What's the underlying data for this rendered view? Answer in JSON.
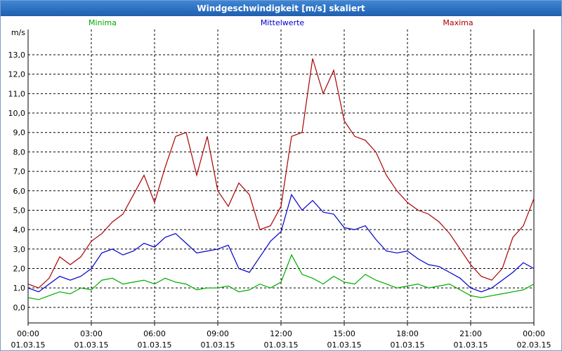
{
  "window": {
    "title": "Windgeschwindigkeit [m/s] skaliert"
  },
  "chart_data": {
    "type": "line",
    "title": "Windgeschwindigkeit [m/s] skaliert",
    "ylabel": "m/s",
    "ylim": [
      -0.8,
      14.3
    ],
    "xlim_hours": [
      0,
      24
    ],
    "y_ticks": [
      "0,0",
      "1,0",
      "2,0",
      "3,0",
      "4,0",
      "5,0",
      "6,0",
      "7,0",
      "8,0",
      "9,0",
      "10,0",
      "11,0",
      "12,0",
      "13,0"
    ],
    "x_ticks": [
      {
        "time": "00:00",
        "date": "01.03.15"
      },
      {
        "time": "03:00",
        "date": "01.03.15"
      },
      {
        "time": "06:00",
        "date": "01.03.15"
      },
      {
        "time": "09:00",
        "date": "01.03.15"
      },
      {
        "time": "12:00",
        "date": "01.03.15"
      },
      {
        "time": "15:00",
        "date": "01.03.15"
      },
      {
        "time": "18:00",
        "date": "01.03.15"
      },
      {
        "time": "21:00",
        "date": "01.03.15"
      },
      {
        "time": "00:00",
        "date": "02.03.15"
      }
    ],
    "grid": true,
    "x_hours": [
      0,
      0.5,
      1,
      1.5,
      2,
      2.5,
      3,
      3.5,
      4,
      4.5,
      5,
      5.5,
      6,
      6.5,
      7,
      7.5,
      8,
      8.5,
      9,
      9.5,
      10,
      10.5,
      11,
      11.5,
      12,
      12.5,
      13,
      13.5,
      14,
      14.5,
      15,
      15.5,
      16,
      16.5,
      17,
      17.5,
      18,
      18.5,
      19,
      19.5,
      20,
      20.5,
      21,
      21.5,
      22,
      22.5,
      23,
      23.5,
      24
    ],
    "series": [
      {
        "name": "Minima",
        "color": "#00aa00",
        "values": [
          0.5,
          0.4,
          0.6,
          0.8,
          0.7,
          1.0,
          0.9,
          1.4,
          1.5,
          1.2,
          1.3,
          1.4,
          1.2,
          1.5,
          1.3,
          1.2,
          0.9,
          1.0,
          1.0,
          1.1,
          0.8,
          0.9,
          1.2,
          1.0,
          1.3,
          2.7,
          1.7,
          1.5,
          1.2,
          1.6,
          1.3,
          1.2,
          1.7,
          1.4,
          1.2,
          1.0,
          1.1,
          1.2,
          1.0,
          1.1,
          1.2,
          0.9,
          0.6,
          0.5,
          0.6,
          0.7,
          0.8,
          0.9,
          1.2
        ]
      },
      {
        "name": "Mittelwerte",
        "color": "#0000cc",
        "values": [
          1.0,
          0.8,
          1.2,
          1.6,
          1.4,
          1.6,
          2.0,
          2.8,
          3.0,
          2.7,
          2.9,
          3.3,
          3.1,
          3.6,
          3.8,
          3.3,
          2.8,
          2.9,
          3.0,
          3.2,
          2.0,
          1.8,
          2.6,
          3.4,
          3.9,
          5.8,
          5.0,
          5.5,
          4.9,
          4.8,
          4.1,
          4.0,
          4.2,
          3.5,
          2.9,
          2.8,
          2.9,
          2.5,
          2.2,
          2.1,
          1.8,
          1.5,
          1.0,
          0.8,
          1.0,
          1.4,
          1.8,
          2.3,
          2.0
        ]
      },
      {
        "name": "Maxima",
        "color": "#aa0000",
        "values": [
          1.2,
          1.0,
          1.5,
          2.6,
          2.2,
          2.6,
          3.4,
          3.8,
          4.4,
          4.8,
          5.8,
          6.8,
          5.4,
          7.2,
          8.8,
          9.0,
          6.8,
          8.8,
          6.0,
          5.2,
          6.4,
          5.8,
          4.0,
          4.2,
          5.2,
          8.8,
          9.0,
          12.8,
          11.0,
          12.2,
          9.6,
          8.8,
          8.6,
          8.0,
          6.8,
          6.0,
          5.4,
          5.0,
          4.8,
          4.4,
          3.8,
          3.0,
          2.2,
          1.6,
          1.4,
          2.0,
          3.6,
          4.2,
          5.6
        ]
      }
    ]
  }
}
